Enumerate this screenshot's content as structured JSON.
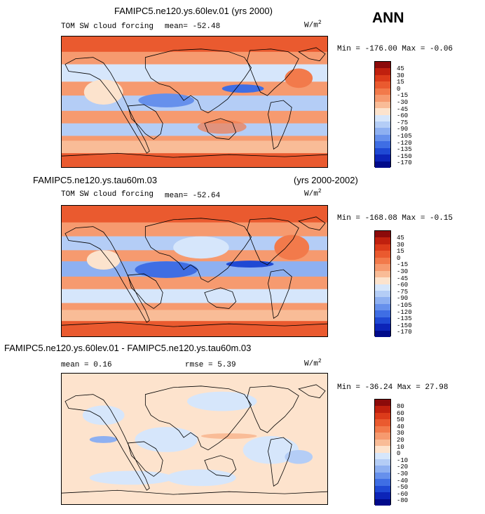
{
  "season": "ANN",
  "panels": [
    {
      "title": "FAMIPC5.ne120.ys.60lev.01 (yrs 2000)",
      "left_label": "TOM SW cloud forcing",
      "mean_text": "mean= -52.48",
      "units": "W/m",
      "units_exp": "2",
      "minmax": "Min = -176.00 Max =  -0.06",
      "levels": [
        "45",
        "30",
        "15",
        "0",
        "-15",
        "-30",
        "-45",
        "-60",
        "-75",
        "-90",
        "-105",
        "-120",
        "-135",
        "-150",
        "-170"
      ],
      "colors": [
        "#8c0a0a",
        "#c0200e",
        "#dc3b1a",
        "#ea5a2f",
        "#f27a4b",
        "#f69a6f",
        "#f9bc97",
        "#fce3cd",
        "#d6e6fb",
        "#b4cdf6",
        "#8eb0f1",
        "#6690ec",
        "#3f6ee4",
        "#1f49d4",
        "#0c24b8",
        "#000a8a"
      ]
    },
    {
      "title_left": "FAMIPC5.ne120.ys.tau60m.03",
      "title_right": "(yrs 2000-2002)",
      "left_label": "TOM SW cloud forcing",
      "mean_text": "mean= -52.64",
      "units": "W/m",
      "units_exp": "2",
      "minmax": "Min = -168.08 Max =  -0.15",
      "levels": [
        "45",
        "30",
        "15",
        "0",
        "-15",
        "-30",
        "-45",
        "-60",
        "-75",
        "-90",
        "-105",
        "-120",
        "-135",
        "-150",
        "-170"
      ],
      "colors": [
        "#8c0a0a",
        "#c0200e",
        "#dc3b1a",
        "#ea5a2f",
        "#f27a4b",
        "#f69a6f",
        "#f9bc97",
        "#fce3cd",
        "#d6e6fb",
        "#b4cdf6",
        "#8eb0f1",
        "#6690ec",
        "#3f6ee4",
        "#1f49d4",
        "#0c24b8",
        "#000a8a"
      ]
    },
    {
      "title": "FAMIPC5.ne120.ys.60lev.01 - FAMIPC5.ne120.ys.tau60m.03",
      "mean_text": "mean =   0.16",
      "rmse_text": "rmse =   5.39",
      "units": "W/m",
      "units_exp": "2",
      "minmax": "Min = -36.24 Max =  27.98",
      "levels": [
        "80",
        "60",
        "50",
        "40",
        "30",
        "20",
        "10",
        "0",
        "-10",
        "-20",
        "-30",
        "-40",
        "-50",
        "-60",
        "-80"
      ],
      "colors": [
        "#8c0a0a",
        "#c0200e",
        "#dc3b1a",
        "#ea5a2f",
        "#f27a4b",
        "#f69a6f",
        "#f9bc97",
        "#fde3cd",
        "#d6e6fb",
        "#b4cdf6",
        "#8eb0f1",
        "#6690ec",
        "#3f6ee4",
        "#1f49d4",
        "#0c24b8",
        "#000a8a"
      ]
    }
  ]
}
